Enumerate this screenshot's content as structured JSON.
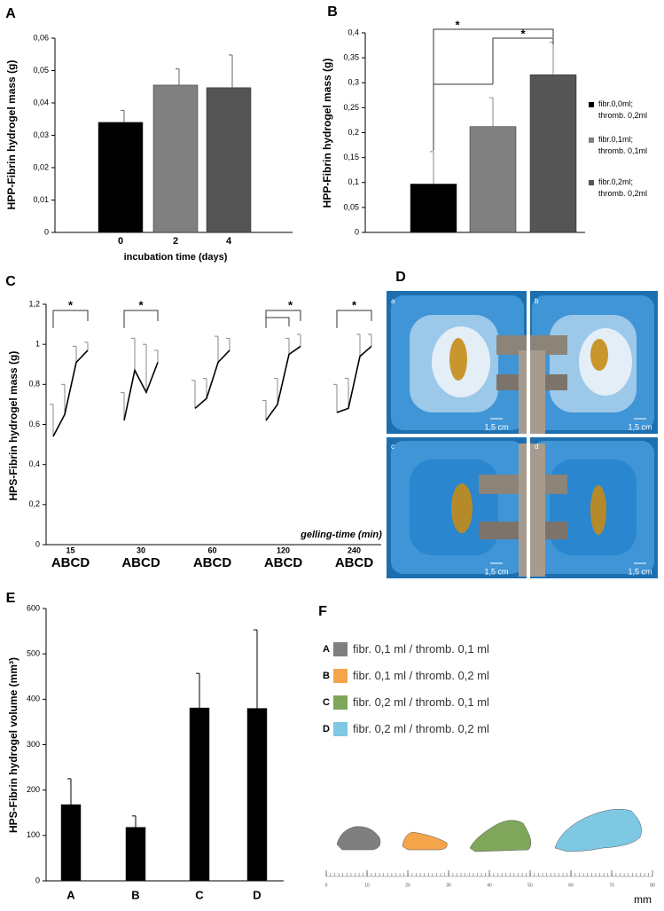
{
  "chart_data": [
    {
      "type": "bar",
      "panel": "A",
      "ylabel": "HPP-Fibrin hydrogel mass (g)",
      "xlabel": "incubation time (days)",
      "categories": [
        "0",
        "2",
        "4"
      ],
      "values": [
        0.034,
        0.0455,
        0.0447
      ],
      "errors": [
        0.0037,
        0.005,
        0.0101
      ],
      "colors": [
        "#000000",
        "#808080",
        "#555555"
      ],
      "ylim": [
        0,
        0.06
      ],
      "yticks": [
        0,
        {
          "value": 0.01,
          "label": "0,01"
        },
        {
          "value": 0.02,
          "label": "0,02"
        },
        {
          "value": 0.03,
          "label": "0,03"
        },
        {
          "value": 0.04,
          "label": "0,04"
        },
        {
          "value": 0.05,
          "label": "0,05"
        },
        {
          "value": 0.06,
          "label": "0,06"
        }
      ]
    },
    {
      "type": "bar",
      "panel": "B",
      "ylabel": "HPP-Fibrin hydrogel mass (g)",
      "series": [
        {
          "name": "fibr.0,0ml; thromb. 0,2ml",
          "color": "#000000",
          "values": [
            0.097
          ],
          "errors": [
            0.065
          ]
        },
        {
          "name": "fibr.0,1ml; thromb. 0,1ml",
          "color": "#808080",
          "values": [
            0.212
          ],
          "errors": [
            0.058
          ]
        },
        {
          "name": "fibr.0,2ml; thromb. 0,2ml",
          "color": "#555555",
          "values": [
            0.316
          ],
          "errors": [
            0.065
          ]
        }
      ],
      "annotations": [
        "*",
        "*"
      ],
      "ylim": [
        0,
        0.4
      ],
      "yticks": [
        0,
        {
          "value": 0.05,
          "label": "0,05"
        },
        {
          "value": 0.1,
          "label": "0,1"
        },
        {
          "value": 0.15,
          "label": "0,15"
        },
        {
          "value": 0.2,
          "label": "0,2"
        },
        {
          "value": 0.25,
          "label": "0,25"
        },
        {
          "value": 0.3,
          "label": "0,3"
        },
        {
          "value": 0.35,
          "label": "0,35"
        },
        {
          "value": 0.4,
          "label": "0,4"
        }
      ]
    },
    {
      "type": "line",
      "panel": "C",
      "ylabel": "HPS-Fibrin hydrogel mass (g)",
      "xlabel": "gelling-time (min)",
      "categories": [
        "15",
        "30",
        "60",
        "120",
        "240"
      ],
      "group_label": "ABCD",
      "color": "#000000",
      "values": [
        [
          0.54,
          0.65,
          0.91,
          0.97
        ],
        [
          0.62,
          0.87,
          0.76,
          0.91
        ],
        [
          0.68,
          0.73,
          0.91,
          0.97
        ],
        [
          0.62,
          0.7,
          0.95,
          0.99
        ],
        [
          0.66,
          0.68,
          0.94,
          0.99
        ]
      ],
      "errors": [
        [
          0.16,
          0.15,
          0.08,
          0.04
        ],
        [
          0.14,
          0.16,
          0.24,
          0.06
        ],
        [
          0.14,
          0.1,
          0.13,
          0.06
        ],
        [
          0.1,
          0.13,
          0.08,
          0.06
        ],
        [
          0.14,
          0.15,
          0.11,
          0.06
        ]
      ],
      "annotations": [
        "*",
        "*",
        "*",
        "*"
      ],
      "ylim": [
        0,
        1.2
      ],
      "yticks": [
        0,
        {
          "value": 0.2,
          "label": "0,2"
        },
        {
          "value": 0.4,
          "label": "0,4"
        },
        {
          "value": 0.6,
          "label": "0,6"
        },
        {
          "value": 0.8,
          "label": "0,8"
        },
        1,
        {
          "value": 1.2,
          "label": "1,2"
        }
      ]
    },
    {
      "type": "bar",
      "panel": "E",
      "ylabel": "HPS-Fibrin hydrogel volume (mm³)",
      "categories": [
        "A",
        "B",
        "C",
        "D"
      ],
      "values": [
        168,
        118,
        381,
        380
      ],
      "errors": [
        57,
        25,
        76,
        173
      ],
      "colors": [
        "#000000",
        "#000000",
        "#000000",
        "#000000"
      ],
      "ylim": [
        0,
        600
      ],
      "yticks": [
        0,
        100,
        200,
        300,
        400,
        500,
        600
      ]
    }
  ],
  "panel_d": {
    "panel": "D",
    "labels": [
      "a",
      "b",
      "c",
      "d"
    ],
    "scale_label": "1,5 cm"
  },
  "panel_f": {
    "panel": "F",
    "items": [
      {
        "letter": "A",
        "label": "fibr. 0,1 ml / thromb. 0,1 ml",
        "color": "#7f7f7f"
      },
      {
        "letter": "B",
        "label": "fibr. 0,1 ml / thromb. 0,2 ml",
        "color": "#f4a54a"
      },
      {
        "letter": "C",
        "label": "fibr. 0,2 ml / thromb. 0,1 ml",
        "color": "#7fa65a"
      },
      {
        "letter": "D",
        "label": "fibr. 0,2 ml / thromb. 0,2 ml",
        "color": "#7ec8e3"
      }
    ],
    "ruler": {
      "xlim": [
        0,
        80
      ],
      "xticks": [
        0,
        10,
        20,
        30,
        40,
        50,
        60,
        70,
        80
      ],
      "unit": "mm"
    }
  }
}
